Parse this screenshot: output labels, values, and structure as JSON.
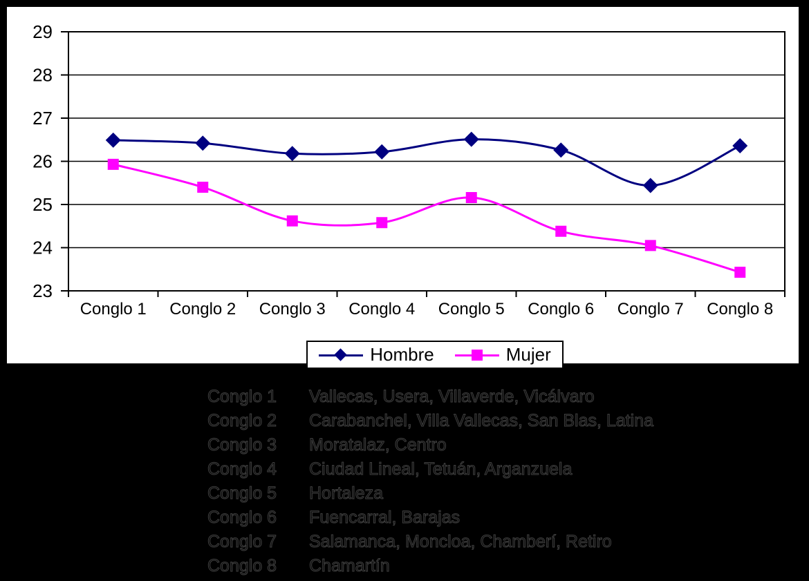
{
  "page": {
    "background": "#000000",
    "panel_background": "#ffffff"
  },
  "chart_data": {
    "type": "line",
    "title": "",
    "xlabel": "",
    "ylabel": "",
    "categories": [
      "Conglo 1",
      "Conglo 2",
      "Conglo 3",
      "Conglo 4",
      "Conglo 5",
      "Conglo 6",
      "Conglo 7",
      "Conglo 8"
    ],
    "series": [
      {
        "name": "Hombre",
        "color": "#000080",
        "marker": "diamond",
        "values": [
          26.49,
          26.42,
          26.18,
          26.22,
          26.51,
          26.26,
          25.44,
          26.36
        ]
      },
      {
        "name": "Mujer",
        "color": "#FF00FF",
        "marker": "square",
        "values": [
          25.93,
          25.4,
          24.62,
          24.58,
          25.16,
          24.38,
          24.05,
          23.43
        ]
      }
    ],
    "ylim": [
      23,
      29
    ],
    "yticks": [
      23,
      24,
      25,
      26,
      27,
      28,
      29
    ],
    "grid": true,
    "smooth": true,
    "legend_position": "bottom",
    "axis_color": "#000000",
    "gridline_color": "#000000"
  },
  "annotations": {
    "items": [
      {
        "label": "Conglo 1",
        "text": "Vallecas, Usera, Villaverde, Vicálvaro"
      },
      {
        "label": "Conglo 2",
        "text": "Carabanchel, Villa Vallecas, San Blas, Latina"
      },
      {
        "label": "Conglo 3",
        "text": "Moratalaz, Centro"
      },
      {
        "label": "Conglo 4",
        "text": "Ciudad Lineal, Tetuán, Arganzuela"
      },
      {
        "label": "Conglo 5",
        "text": "Hortaleza"
      },
      {
        "label": "Conglo 6",
        "text": "Fuencarral, Barajas"
      },
      {
        "label": "Conglo 7",
        "text": "Salamanca, Moncloa, Chamberí, Retiro"
      },
      {
        "label": "Conglo 8",
        "text": "Chamartín"
      }
    ]
  }
}
